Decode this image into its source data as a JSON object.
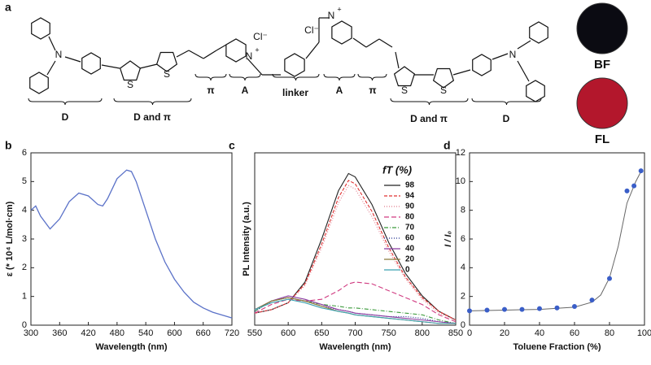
{
  "structure": {
    "panel": "a",
    "groups": [
      "D",
      "D and π",
      "π",
      "A",
      "linker",
      "A",
      "π",
      "D and π",
      "D"
    ],
    "atoms": [
      "N",
      "S",
      "S",
      "N",
      "+",
      "Cl⁻",
      "Cl⁻",
      "N",
      "+",
      "S",
      "S",
      "N"
    ]
  },
  "images": [
    {
      "label": "BF",
      "color": "#0b0b12"
    },
    {
      "label": "FL",
      "color": "#b3172c"
    }
  ],
  "chart_data": [
    {
      "type": "line",
      "panel": "b",
      "xlabel": "Wavelength (nm)",
      "ylabel": "ε (* 10⁴ L/mol·cm)",
      "xlim": [
        300,
        720
      ],
      "xticks": [
        300,
        360,
        420,
        480,
        540,
        600,
        660,
        720
      ],
      "ylim": [
        0,
        6
      ],
      "yticks": [
        0,
        1,
        2,
        3,
        4,
        5,
        6
      ],
      "color": "#5b72c8",
      "x": [
        300,
        310,
        320,
        340,
        360,
        380,
        400,
        420,
        440,
        450,
        460,
        480,
        500,
        510,
        520,
        540,
        560,
        580,
        600,
        620,
        640,
        660,
        680,
        700,
        720
      ],
      "values": [
        4.0,
        4.15,
        3.8,
        3.35,
        3.7,
        4.3,
        4.6,
        4.5,
        4.2,
        4.15,
        4.4,
        5.1,
        5.4,
        5.35,
        5.0,
        4.0,
        3.0,
        2.2,
        1.6,
        1.15,
        0.8,
        0.6,
        0.45,
        0.35,
        0.25
      ]
    },
    {
      "type": "line",
      "panel": "c",
      "xlabel": "Wavelength (nm)",
      "ylabel": "PL Intensity (a.u.)",
      "legend_title": "fT (%)",
      "xlim": [
        550,
        850
      ],
      "xticks": [
        550,
        600,
        650,
        700,
        750,
        800,
        850
      ],
      "ylim": [
        0,
        1
      ],
      "x": [
        550,
        575,
        600,
        625,
        650,
        675,
        690,
        700,
        725,
        750,
        775,
        800,
        825,
        850
      ],
      "series": [
        {
          "name": "98",
          "color": "#222222",
          "dash": "",
          "values": [
            0.07,
            0.09,
            0.13,
            0.25,
            0.5,
            0.78,
            0.88,
            0.86,
            0.7,
            0.48,
            0.3,
            0.17,
            0.08,
            0.03
          ]
        },
        {
          "name": "94",
          "color": "#e03030",
          "dash": "4 2",
          "values": [
            0.07,
            0.09,
            0.13,
            0.24,
            0.47,
            0.74,
            0.84,
            0.82,
            0.66,
            0.45,
            0.28,
            0.16,
            0.08,
            0.03
          ]
        },
        {
          "name": "90",
          "color": "#e07a8a",
          "dash": "1 2",
          "values": [
            0.07,
            0.09,
            0.13,
            0.23,
            0.45,
            0.71,
            0.81,
            0.79,
            0.63,
            0.43,
            0.27,
            0.15,
            0.07,
            0.03
          ]
        },
        {
          "name": "80",
          "color": "#d03a80",
          "dash": "6 3",
          "values": [
            0.07,
            0.12,
            0.15,
            0.14,
            0.15,
            0.2,
            0.24,
            0.25,
            0.24,
            0.2,
            0.16,
            0.12,
            0.06,
            0.02
          ]
        },
        {
          "name": "70",
          "color": "#3a9a3a",
          "dash": "5 2 1 2",
          "values": [
            0.08,
            0.14,
            0.16,
            0.14,
            0.12,
            0.11,
            0.1,
            0.1,
            0.09,
            0.08,
            0.07,
            0.06,
            0.03,
            0.01
          ]
        },
        {
          "name": "60",
          "color": "#1a2a8a",
          "dash": "1 2",
          "values": [
            0.08,
            0.14,
            0.16,
            0.14,
            0.11,
            0.09,
            0.08,
            0.07,
            0.06,
            0.05,
            0.05,
            0.04,
            0.02,
            0.01
          ]
        },
        {
          "name": "40",
          "color": "#8a3aa0",
          "dash": "",
          "values": [
            0.09,
            0.14,
            0.17,
            0.15,
            0.12,
            0.09,
            0.08,
            0.07,
            0.06,
            0.05,
            0.04,
            0.03,
            0.02,
            0.01
          ]
        },
        {
          "name": "20",
          "color": "#8a7a3a",
          "dash": "",
          "values": [
            0.09,
            0.14,
            0.16,
            0.14,
            0.11,
            0.08,
            0.07,
            0.06,
            0.05,
            0.04,
            0.03,
            0.02,
            0.01,
            0.01
          ]
        },
        {
          "name": "0",
          "color": "#3aa0b0",
          "dash": "",
          "values": [
            0.09,
            0.13,
            0.15,
            0.13,
            0.1,
            0.08,
            0.07,
            0.06,
            0.05,
            0.04,
            0.03,
            0.02,
            0.01,
            0.01
          ]
        }
      ]
    },
    {
      "type": "scatter",
      "panel": "d",
      "xlabel": "Toluene Fraction (%)",
      "ylabel": "I / I₀",
      "xlim": [
        0,
        100
      ],
      "xticks": [
        0,
        20,
        40,
        60,
        80,
        100
      ],
      "ylim": [
        0,
        12
      ],
      "yticks": [
        0,
        2,
        4,
        6,
        8,
        10,
        12
      ],
      "color": "#3a5ec8",
      "fit_color": "#666666",
      "x": [
        0,
        10,
        20,
        30,
        40,
        50,
        60,
        70,
        80,
        90,
        94,
        98
      ],
      "values": [
        1.0,
        1.05,
        1.1,
        1.1,
        1.15,
        1.2,
        1.3,
        1.75,
        3.25,
        9.35,
        9.7,
        10.75
      ],
      "fit": {
        "x": [
          0,
          20,
          40,
          60,
          70,
          75,
          80,
          85,
          90,
          95,
          98
        ],
        "values": [
          1.0,
          1.05,
          1.1,
          1.25,
          1.6,
          2.1,
          3.3,
          5.5,
          8.5,
          10.0,
          10.7
        ]
      }
    }
  ]
}
